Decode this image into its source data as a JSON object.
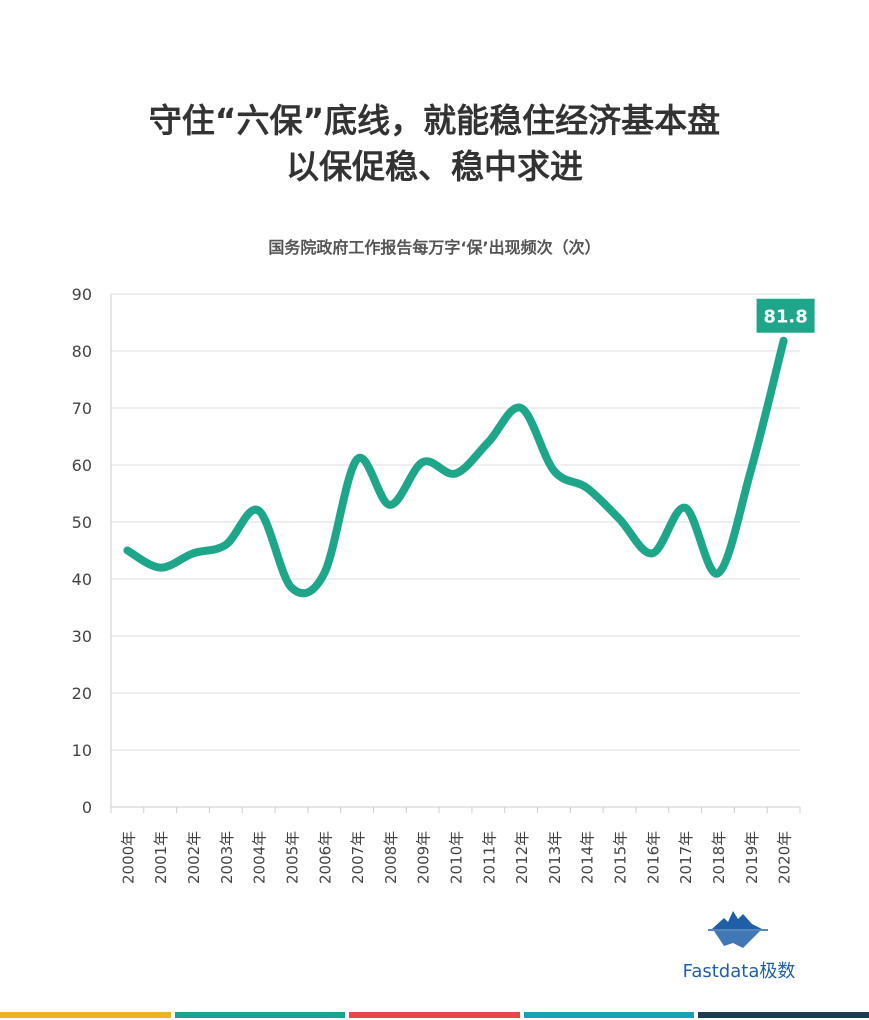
{
  "headline": {
    "line1": "守住“六保”底线，就能稳住经济基本盘",
    "line2": "以保促稳、稳中求进"
  },
  "chart_data": {
    "type": "line",
    "title": "国务院政府工作报告每万字‘保’出现频次（次）",
    "xlabel": "",
    "ylabel": "",
    "ylim": [
      0,
      90
    ],
    "yticks": [
      0,
      10,
      20,
      30,
      40,
      50,
      60,
      70,
      80,
      90
    ],
    "categories": [
      "2000年",
      "2001年",
      "2002年",
      "2003年",
      "2004年",
      "2005年",
      "2006年",
      "2007年",
      "2008年",
      "2009年",
      "2010年",
      "2011年",
      "2012年",
      "2013年",
      "2014年",
      "2015年",
      "2016年",
      "2017年",
      "2018年",
      "2019年",
      "2020年"
    ],
    "series": [
      {
        "values": [
          45,
          42,
          44.5,
          46,
          52,
          38.5,
          41,
          61,
          53,
          60.5,
          58.5,
          64,
          70,
          59,
          56,
          50.5,
          44.5,
          52.5,
          41,
          59,
          81.8
        ]
      }
    ],
    "annotation": {
      "label": "81.8",
      "index": 20
    },
    "grid": true,
    "line_color": "#1da68a",
    "label_bg_color": "#1da68a"
  },
  "logo": {
    "name": "Fastdata极数",
    "icon": "iceberg-icon"
  },
  "bottom_bar_colors": [
    "#e8b424",
    "#1aa38f",
    "#e8474a",
    "#1aa0b6",
    "#1d3a4f"
  ]
}
